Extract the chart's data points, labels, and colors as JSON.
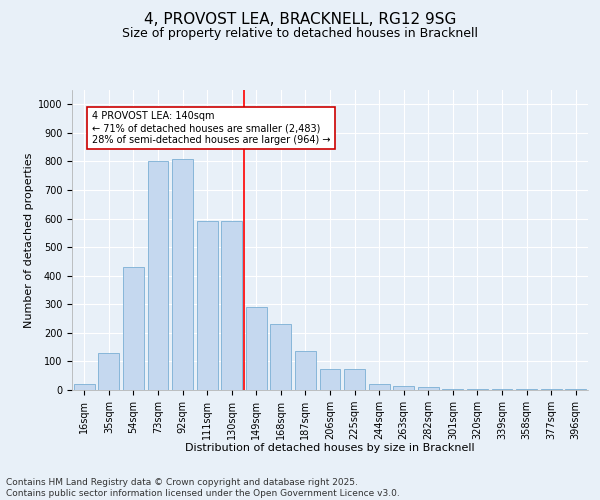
{
  "title": "4, PROVOST LEA, BRACKNELL, RG12 9SG",
  "subtitle": "Size of property relative to detached houses in Bracknell",
  "xlabel": "Distribution of detached houses by size in Bracknell",
  "ylabel": "Number of detached properties",
  "categories": [
    "16sqm",
    "35sqm",
    "54sqm",
    "73sqm",
    "92sqm",
    "111sqm",
    "130sqm",
    "149sqm",
    "168sqm",
    "187sqm",
    "206sqm",
    "225sqm",
    "244sqm",
    "263sqm",
    "282sqm",
    "301sqm",
    "320sqm",
    "339sqm",
    "358sqm",
    "377sqm",
    "396sqm"
  ],
  "values": [
    20,
    130,
    430,
    800,
    810,
    590,
    590,
    290,
    230,
    135,
    75,
    75,
    20,
    15,
    10,
    5,
    2,
    2,
    2,
    2,
    5
  ],
  "bar_color": "#C5D8EF",
  "bar_edge_color": "#7BAFD4",
  "annotation_line1": "4 PROVOST LEA: 140sqm",
  "annotation_line2": "← 71% of detached houses are smaller (2,483)",
  "annotation_line3": "28% of semi-detached houses are larger (964) →",
  "annotation_box_facecolor": "#FFFFFF",
  "annotation_box_edgecolor": "#CC0000",
  "red_line_bar_index": 6.5,
  "ylim": [
    0,
    1050
  ],
  "yticks": [
    0,
    100,
    200,
    300,
    400,
    500,
    600,
    700,
    800,
    900,
    1000
  ],
  "background_color": "#E8F0F8",
  "grid_color": "#FFFFFF",
  "footer_line1": "Contains HM Land Registry data © Crown copyright and database right 2025.",
  "footer_line2": "Contains public sector information licensed under the Open Government Licence v3.0.",
  "title_fontsize": 11,
  "subtitle_fontsize": 9,
  "xlabel_fontsize": 8,
  "ylabel_fontsize": 8,
  "tick_fontsize": 7,
  "annotation_fontsize": 7,
  "footer_fontsize": 6.5
}
